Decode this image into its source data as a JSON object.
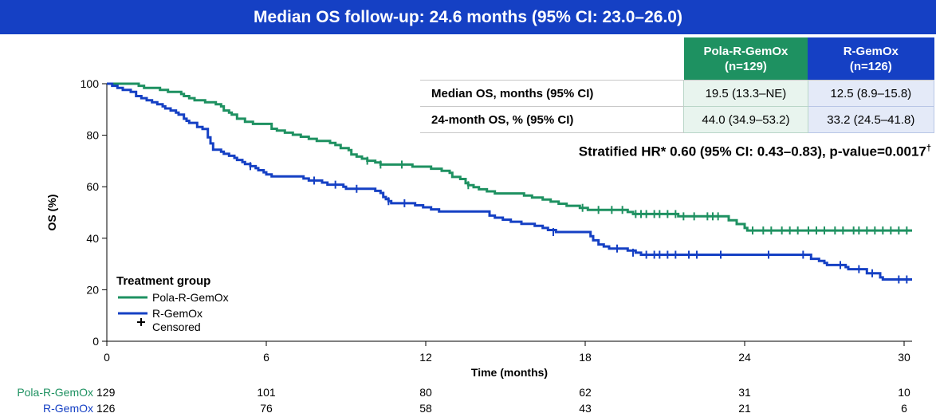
{
  "banner_title": "Median OS follow-up: 24.6 months (95% CI: 23.0–26.0)",
  "colors": {
    "pola": "#1e9161",
    "rgemox": "#1540c4",
    "banner": "#1540c4"
  },
  "table": {
    "headers": [
      {
        "line1": "Pola-R-GemOx",
        "line2": "(n=129)"
      },
      {
        "line1": "R-GemOx",
        "line2": "(n=126)"
      }
    ],
    "rows": [
      {
        "label": "Median OS, months (95% CI)",
        "pola": "19.5 (13.3–NE)",
        "rgemox": "12.5 (8.9–15.8)"
      },
      {
        "label": "24-month OS, % (95% CI)",
        "pola": "44.0 (34.9–53.2)",
        "rgemox": "33.2 (24.5–41.8)"
      }
    ]
  },
  "hazard_ratio": {
    "text": "Stratified HR* 0.60 (95% CI: 0.43–0.83), p-value=0.0017",
    "mark": "†"
  },
  "chart_data": {
    "type": "line",
    "step": true,
    "xlabel": "Time (months)",
    "ylabel": "OS (%)",
    "xlim": [
      0,
      30.3
    ],
    "ylim": [
      0,
      100
    ],
    "xticks": [
      0,
      6,
      12,
      18,
      24,
      30
    ],
    "yticks": [
      0,
      20,
      40,
      60,
      80,
      100
    ],
    "legend": {
      "title": "Treatment group",
      "position": "bottom-left",
      "entries": [
        "Pola-R-GemOx",
        "R-GemOx"
      ],
      "censored_label": "Censored"
    },
    "series": [
      {
        "name": "Pola-R-GemOx",
        "points": [
          [
            0,
            100
          ],
          [
            0.9,
            100
          ],
          [
            1.2,
            99.2
          ],
          [
            1.4,
            98.4
          ],
          [
            1.7,
            98.4
          ],
          [
            2,
            97.6
          ],
          [
            2.3,
            96.8
          ],
          [
            2.5,
            96.8
          ],
          [
            2.8,
            96
          ],
          [
            2.9,
            95.2
          ],
          [
            3.1,
            94.4
          ],
          [
            3.3,
            93.6
          ],
          [
            3.5,
            93.6
          ],
          [
            3.7,
            92.8
          ],
          [
            4.1,
            92
          ],
          [
            4.3,
            91.2
          ],
          [
            4.4,
            89.6
          ],
          [
            4.6,
            88.8
          ],
          [
            4.7,
            88
          ],
          [
            4.9,
            86.4
          ],
          [
            5.2,
            85.2
          ],
          [
            5.5,
            84.4
          ],
          [
            6,
            84.4
          ],
          [
            6.2,
            82.5
          ],
          [
            6.4,
            81.8
          ],
          [
            6.7,
            81
          ],
          [
            7,
            80.2
          ],
          [
            7.3,
            79.4
          ],
          [
            7.6,
            78.6
          ],
          [
            7.9,
            77.8
          ],
          [
            8.4,
            77
          ],
          [
            8.6,
            76.2
          ],
          [
            8.8,
            75
          ],
          [
            9.1,
            74.2
          ],
          [
            9.2,
            72.5
          ],
          [
            9.4,
            71.7
          ],
          [
            9.6,
            70.9
          ],
          [
            9.8,
            70.1
          ],
          [
            10.1,
            69.4
          ],
          [
            10.3,
            68.6
          ],
          [
            11.2,
            68.6
          ],
          [
            11.5,
            67.8
          ],
          [
            12.2,
            67
          ],
          [
            12.6,
            66.2
          ],
          [
            12.9,
            65.4
          ],
          [
            13,
            63.8
          ],
          [
            13.3,
            63
          ],
          [
            13.5,
            61.4
          ],
          [
            13.6,
            60.6
          ],
          [
            13.8,
            59.8
          ],
          [
            14,
            59
          ],
          [
            14.3,
            58.2
          ],
          [
            14.6,
            57.4
          ],
          [
            15.3,
            57.4
          ],
          [
            15.7,
            56.6
          ],
          [
            16,
            55.8
          ],
          [
            16.4,
            55
          ],
          [
            16.7,
            54.2
          ],
          [
            17,
            53.4
          ],
          [
            17.3,
            52.6
          ],
          [
            17.8,
            51.8
          ],
          [
            18,
            51.8
          ],
          [
            18.1,
            51
          ],
          [
            19.3,
            51
          ],
          [
            19.6,
            50.2
          ],
          [
            19.8,
            49.4
          ],
          [
            21.4,
            49.4
          ],
          [
            21.5,
            48.5
          ],
          [
            22.4,
            48.5
          ],
          [
            22.7,
            48.5
          ],
          [
            23,
            48.5
          ],
          [
            23.4,
            47
          ],
          [
            23.7,
            45.5
          ],
          [
            24,
            44
          ],
          [
            24.1,
            43
          ],
          [
            25,
            43
          ],
          [
            27,
            43
          ],
          [
            28,
            43
          ],
          [
            30.3,
            43
          ]
        ],
        "censored": [
          [
            9.8,
            70.1
          ],
          [
            10.3,
            68.6
          ],
          [
            11.1,
            68.6
          ],
          [
            13.6,
            60.6
          ],
          [
            17.9,
            51.8
          ],
          [
            18.5,
            51
          ],
          [
            19,
            51
          ],
          [
            19.4,
            51
          ],
          [
            19.9,
            49.4
          ],
          [
            20.1,
            49.4
          ],
          [
            20.3,
            49.4
          ],
          [
            20.6,
            49.4
          ],
          [
            20.8,
            49.4
          ],
          [
            21.1,
            49.4
          ],
          [
            21.4,
            49.4
          ],
          [
            21.7,
            48.5
          ],
          [
            22.1,
            48.5
          ],
          [
            22.6,
            48.5
          ],
          [
            22.8,
            48.5
          ],
          [
            23,
            48.5
          ],
          [
            24.3,
            43
          ],
          [
            24.7,
            43
          ],
          [
            25,
            43
          ],
          [
            25.4,
            43
          ],
          [
            25.7,
            43
          ],
          [
            26,
            43
          ],
          [
            26.4,
            43
          ],
          [
            26.7,
            43
          ],
          [
            27,
            43
          ],
          [
            27.4,
            43
          ],
          [
            27.7,
            43
          ],
          [
            28.1,
            43
          ],
          [
            28.3,
            43
          ],
          [
            28.6,
            43
          ],
          [
            28.9,
            43
          ],
          [
            29.2,
            43
          ],
          [
            29.5,
            43
          ],
          [
            29.8,
            43
          ],
          [
            30.1,
            43
          ]
        ]
      },
      {
        "name": "R-GemOx",
        "points": [
          [
            0,
            100
          ],
          [
            0.2,
            99.2
          ],
          [
            0.4,
            98.4
          ],
          [
            0.6,
            97.6
          ],
          [
            0.9,
            96.8
          ],
          [
            1.1,
            95.2
          ],
          [
            1.3,
            94.4
          ],
          [
            1.5,
            93.6
          ],
          [
            1.7,
            92.8
          ],
          [
            1.9,
            92
          ],
          [
            2.1,
            91.2
          ],
          [
            2.2,
            90.4
          ],
          [
            2.4,
            89.6
          ],
          [
            2.6,
            88.8
          ],
          [
            2.7,
            88
          ],
          [
            2.9,
            86.4
          ],
          [
            3,
            85.6
          ],
          [
            3.1,
            84.8
          ],
          [
            3.4,
            83.2
          ],
          [
            3.6,
            82.4
          ],
          [
            3.8,
            79.2
          ],
          [
            3.9,
            76.8
          ],
          [
            4,
            74.4
          ],
          [
            4.3,
            73.6
          ],
          [
            4.4,
            72.8
          ],
          [
            4.6,
            72
          ],
          [
            4.8,
            71.2
          ],
          [
            4.9,
            70.4
          ],
          [
            5.1,
            69.6
          ],
          [
            5.2,
            68.8
          ],
          [
            5.4,
            68
          ],
          [
            5.6,
            67.2
          ],
          [
            5.7,
            66.4
          ],
          [
            5.9,
            65.6
          ],
          [
            6,
            64.8
          ],
          [
            6.2,
            64
          ],
          [
            7.3,
            64
          ],
          [
            7.4,
            63.2
          ],
          [
            7.6,
            62.4
          ],
          [
            8,
            62.4
          ],
          [
            8.1,
            61.6
          ],
          [
            8.3,
            60.8
          ],
          [
            8.7,
            60.8
          ],
          [
            8.9,
            60
          ],
          [
            9,
            59.2
          ],
          [
            9.8,
            59.2
          ],
          [
            10.1,
            58.4
          ],
          [
            10.3,
            57.6
          ],
          [
            10.4,
            56
          ],
          [
            10.5,
            55.2
          ],
          [
            10.6,
            54.4
          ],
          [
            10.7,
            53.6
          ],
          [
            11.5,
            53.6
          ],
          [
            11.6,
            52.8
          ],
          [
            11.9,
            52
          ],
          [
            12.2,
            51.2
          ],
          [
            12.5,
            50.4
          ],
          [
            14.3,
            50.4
          ],
          [
            14.4,
            48.8
          ],
          [
            14.6,
            48
          ],
          [
            14.9,
            47.2
          ],
          [
            15.2,
            46.4
          ],
          [
            15.6,
            45.6
          ],
          [
            16.1,
            44.8
          ],
          [
            16.4,
            44
          ],
          [
            16.6,
            43.2
          ],
          [
            16.9,
            42.4
          ],
          [
            18.1,
            42.4
          ],
          [
            18.2,
            40.8
          ],
          [
            18.3,
            39.2
          ],
          [
            18.5,
            37.6
          ],
          [
            18.7,
            36.8
          ],
          [
            18.9,
            36
          ],
          [
            19.4,
            36
          ],
          [
            19.6,
            35.2
          ],
          [
            19.9,
            34.4
          ],
          [
            20.1,
            33.6
          ],
          [
            20.4,
            33.6
          ],
          [
            26.4,
            33.6
          ],
          [
            26.5,
            32
          ],
          [
            26.7,
            32
          ],
          [
            26.8,
            31.2
          ],
          [
            27,
            30.4
          ],
          [
            27.1,
            29.6
          ],
          [
            27.5,
            29.6
          ],
          [
            27.8,
            28.8
          ],
          [
            27.9,
            28
          ],
          [
            28.4,
            28
          ],
          [
            28.6,
            26.4
          ],
          [
            29,
            26.4
          ],
          [
            29.1,
            24.8
          ],
          [
            29.2,
            24
          ],
          [
            30.3,
            24
          ]
        ],
        "censored": [
          [
            5.4,
            68
          ],
          [
            7.8,
            62.4
          ],
          [
            8.6,
            60.8
          ],
          [
            9.4,
            59.2
          ],
          [
            10.6,
            54.4
          ],
          [
            11.2,
            53.6
          ],
          [
            16.8,
            42.4
          ],
          [
            19.2,
            36
          ],
          [
            19.8,
            34.4
          ],
          [
            20.3,
            33.6
          ],
          [
            20.6,
            33.6
          ],
          [
            20.8,
            33.6
          ],
          [
            21.1,
            33.6
          ],
          [
            21.4,
            33.6
          ],
          [
            21.9,
            33.6
          ],
          [
            22.2,
            33.6
          ],
          [
            23.1,
            33.6
          ],
          [
            24.9,
            33.6
          ],
          [
            26.2,
            33.6
          ],
          [
            27.6,
            29.6
          ],
          [
            28.3,
            28
          ],
          [
            28.8,
            26.4
          ],
          [
            29.8,
            24
          ],
          [
            30.1,
            24
          ]
        ]
      }
    ]
  },
  "at_risk": {
    "rows": [
      {
        "label": "Pola-R-GemOx",
        "counts": [
          "129",
          "101",
          "80",
          "62",
          "31",
          "10"
        ]
      },
      {
        "label": "R-GemOx",
        "counts": [
          "126",
          "76",
          "58",
          "43",
          "21",
          "6"
        ]
      }
    ]
  }
}
